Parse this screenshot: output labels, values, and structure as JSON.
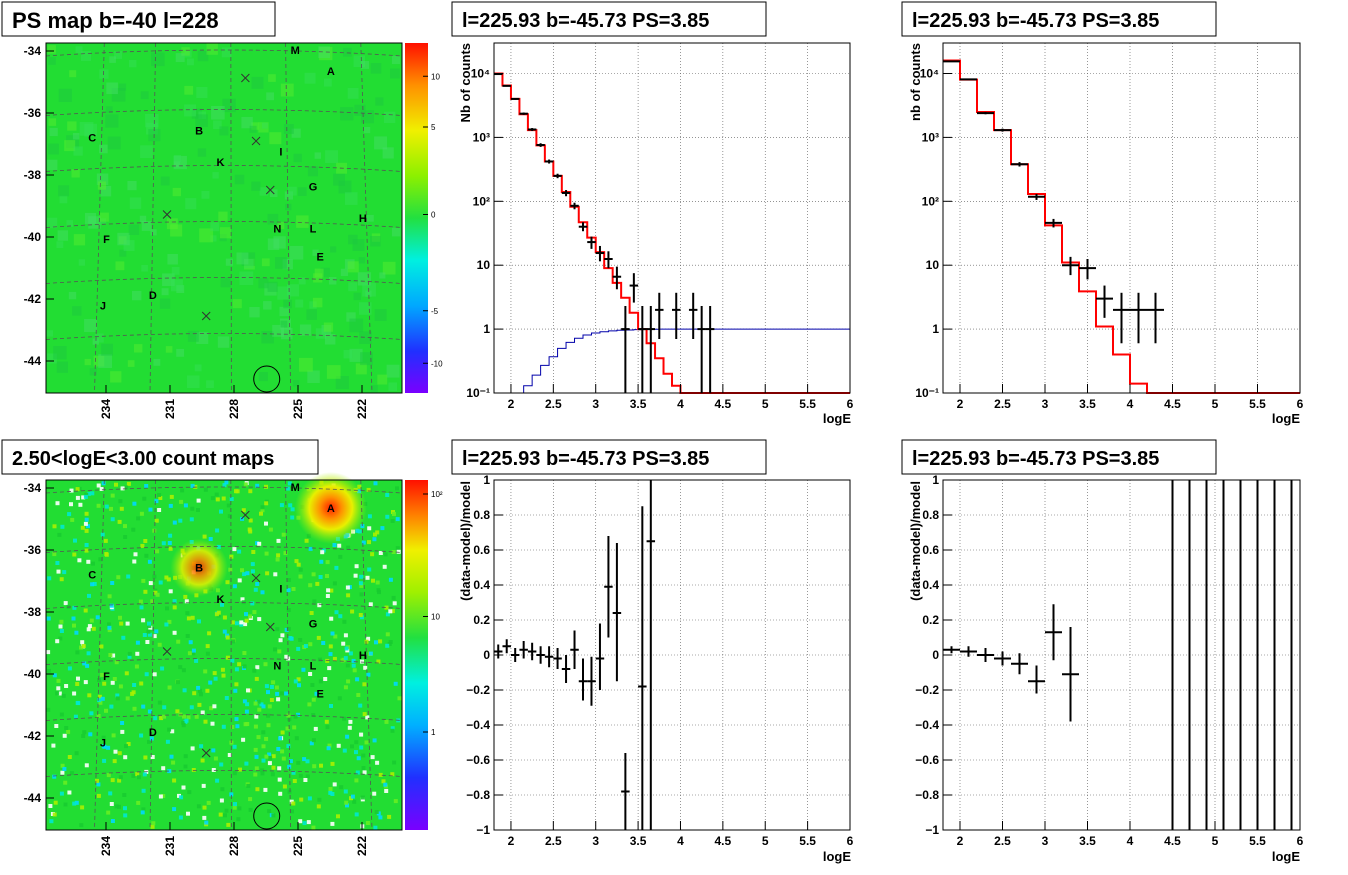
{
  "colors": {
    "data_marker": "#000000",
    "model_line": "#ff0000",
    "ratio_line": "#0000aa",
    "map_background": "#22dd33",
    "grid": "#888888"
  },
  "maps": [
    {
      "id": "ps-map",
      "title": "PS map b=-40 l=228",
      "y_ticks": [
        "-34",
        "-36",
        "-38",
        "-40",
        "-42",
        "-44"
      ],
      "x_ticks": [
        "234",
        "231",
        "228",
        "225",
        "222"
      ],
      "colorbar_labels": [
        "10",
        "5",
        "0",
        "-5",
        "-10"
      ],
      "colorbar_type": "diverging",
      "sources": [
        {
          "label": "A",
          "u": 0.8,
          "v": 0.08
        },
        {
          "label": "M",
          "u": 0.7,
          "v": 0.02
        },
        {
          "label": "B",
          "u": 0.43,
          "v": 0.25
        },
        {
          "label": "C",
          "u": 0.13,
          "v": 0.27
        },
        {
          "label": "I",
          "u": 0.66,
          "v": 0.31
        },
        {
          "label": "K",
          "u": 0.49,
          "v": 0.34
        },
        {
          "label": "G",
          "u": 0.75,
          "v": 0.41
        },
        {
          "label": "H",
          "u": 0.89,
          "v": 0.5
        },
        {
          "label": "N",
          "u": 0.65,
          "v": 0.53
        },
        {
          "label": "L",
          "u": 0.75,
          "v": 0.53
        },
        {
          "label": "F",
          "u": 0.17,
          "v": 0.56
        },
        {
          "label": "E",
          "u": 0.77,
          "v": 0.61
        },
        {
          "label": "D",
          "u": 0.3,
          "v": 0.72
        },
        {
          "label": "J",
          "u": 0.16,
          "v": 0.75
        }
      ],
      "crosses": [
        [
          0.56,
          0.1
        ],
        [
          0.59,
          0.28
        ],
        [
          0.63,
          0.42
        ],
        [
          0.34,
          0.49
        ],
        [
          0.45,
          0.78
        ]
      ],
      "circle": {
        "u": 0.62,
        "v": 0.96
      },
      "blobs": []
    },
    {
      "id": "count-map",
      "title": "2.50<logE<3.00 count maps",
      "y_ticks": [
        "-34",
        "-36",
        "-38",
        "-40",
        "-42",
        "-44"
      ],
      "x_ticks": [
        "234",
        "231",
        "228",
        "225",
        "222"
      ],
      "colorbar_labels": [
        "10²",
        "10",
        "1"
      ],
      "colorbar_type": "log",
      "sources": [
        {
          "label": "A",
          "u": 0.8,
          "v": 0.08
        },
        {
          "label": "M",
          "u": 0.7,
          "v": 0.02
        },
        {
          "label": "B",
          "u": 0.43,
          "v": 0.25
        },
        {
          "label": "C",
          "u": 0.13,
          "v": 0.27
        },
        {
          "label": "I",
          "u": 0.66,
          "v": 0.31
        },
        {
          "label": "K",
          "u": 0.49,
          "v": 0.34
        },
        {
          "label": "G",
          "u": 0.75,
          "v": 0.41
        },
        {
          "label": "H",
          "u": 0.89,
          "v": 0.5
        },
        {
          "label": "N",
          "u": 0.65,
          "v": 0.53
        },
        {
          "label": "L",
          "u": 0.75,
          "v": 0.53
        },
        {
          "label": "F",
          "u": 0.17,
          "v": 0.56
        },
        {
          "label": "E",
          "u": 0.77,
          "v": 0.61
        },
        {
          "label": "D",
          "u": 0.3,
          "v": 0.72
        },
        {
          "label": "J",
          "u": 0.16,
          "v": 0.75
        }
      ],
      "crosses": [
        [
          0.56,
          0.1
        ],
        [
          0.59,
          0.28
        ],
        [
          0.63,
          0.42
        ],
        [
          0.34,
          0.49
        ],
        [
          0.45,
          0.78
        ]
      ],
      "circle": {
        "u": 0.62,
        "v": 0.96
      },
      "blobs": [
        {
          "u": 0.8,
          "v": 0.08,
          "strength": 1.0
        },
        {
          "u": 0.43,
          "v": 0.25,
          "strength": 0.6
        }
      ]
    }
  ],
  "chart_data": [
    {
      "type": "line",
      "id": "spectrum-1",
      "title": "l=225.93 b=-45.73 PS=3.85",
      "xlabel": "logE",
      "ylabel": "Nb of counts",
      "log_y": true,
      "xlim": [
        1.8,
        6.0
      ],
      "ylim": [
        0.1,
        30000
      ],
      "grid": true,
      "x_ticks": [
        2,
        2.5,
        3,
        3.5,
        4,
        4.5,
        5,
        5.5,
        6
      ],
      "x_tick_labels": [
        "2",
        "2.5",
        "3",
        "3.5",
        "4",
        "4.5",
        "5",
        "5.5",
        "6"
      ],
      "y_ticks": [
        0.1,
        1,
        10,
        100,
        1000,
        10000
      ],
      "y_tick_labels": [
        "10⁻¹",
        "1",
        "10",
        "10²",
        "10³",
        "10⁴"
      ],
      "model_edges": [
        1.8,
        1.9,
        2.0,
        2.1,
        2.2,
        2.3,
        2.4,
        2.5,
        2.6,
        2.7,
        2.8,
        2.9,
        3.0,
        3.1,
        3.2,
        3.3,
        3.4,
        3.5,
        3.6,
        3.7,
        3.8,
        3.9,
        4.0,
        4.1,
        6.0
      ],
      "model_values": [
        10000,
        6500,
        4000,
        2300,
        1300,
        750,
        420,
        250,
        140,
        82,
        47,
        27,
        16,
        9,
        5.3,
        3.1,
        1.8,
        1.0,
        0.6,
        0.35,
        0.2,
        0.13,
        0.1,
        0.1
      ],
      "ratio_edges": [
        1.8,
        2.05,
        2.15,
        2.25,
        2.35,
        2.45,
        2.55,
        2.65,
        2.75,
        2.85,
        2.95,
        3.05,
        3.15,
        3.25,
        3.35,
        3.45,
        3.55,
        3.65,
        3.75,
        6.0
      ],
      "ratio_values": [
        0.1,
        0.1,
        0.13,
        0.19,
        0.27,
        0.37,
        0.5,
        0.62,
        0.72,
        0.81,
        0.87,
        0.91,
        0.94,
        0.96,
        0.97,
        0.98,
        0.99,
        0.995,
        1.0
      ],
      "points": [
        {
          "x": 1.85,
          "y": 9800,
          "xerr": 0.05,
          "ylo": 9600,
          "yhi": 10000
        },
        {
          "x": 1.95,
          "y": 6400,
          "xerr": 0.05,
          "ylo": 6250,
          "yhi": 6550
        },
        {
          "x": 2.05,
          "y": 4000,
          "xerr": 0.05,
          "ylo": 3880,
          "yhi": 4120
        },
        {
          "x": 2.15,
          "y": 2350,
          "xerr": 0.05,
          "ylo": 2250,
          "yhi": 2450
        },
        {
          "x": 2.25,
          "y": 1330,
          "xerr": 0.05,
          "ylo": 1260,
          "yhi": 1400
        },
        {
          "x": 2.35,
          "y": 760,
          "xerr": 0.05,
          "ylo": 710,
          "yhi": 810
        },
        {
          "x": 2.45,
          "y": 420,
          "xerr": 0.05,
          "ylo": 390,
          "yhi": 450
        },
        {
          "x": 2.55,
          "y": 250,
          "xerr": 0.05,
          "ylo": 230,
          "yhi": 270
        },
        {
          "x": 2.65,
          "y": 135,
          "xerr": 0.05,
          "ylo": 120,
          "yhi": 150
        },
        {
          "x": 2.75,
          "y": 85,
          "xerr": 0.05,
          "ylo": 75,
          "yhi": 95
        },
        {
          "x": 2.85,
          "y": 40,
          "xerr": 0.05,
          "ylo": 34,
          "yhi": 47
        },
        {
          "x": 2.95,
          "y": 23,
          "xerr": 0.05,
          "ylo": 18,
          "yhi": 28
        },
        {
          "x": 3.05,
          "y": 15.5,
          "xerr": 0.05,
          "ylo": 11.5,
          "yhi": 20
        },
        {
          "x": 3.15,
          "y": 12.5,
          "xerr": 0.05,
          "ylo": 9,
          "yhi": 16.5
        },
        {
          "x": 3.25,
          "y": 6.6,
          "xerr": 0.05,
          "ylo": 4.2,
          "yhi": 9.5
        },
        {
          "x": 3.35,
          "y": 1.0,
          "xerr": 0.05,
          "ylo": 0.1,
          "yhi": 2.3
        },
        {
          "x": 3.45,
          "y": 4.8,
          "xerr": 0.05,
          "ylo": 2.6,
          "yhi": 7.5
        },
        {
          "x": 3.55,
          "y": 1.0,
          "xerr": 0.05,
          "ylo": 0.1,
          "yhi": 2.3
        },
        {
          "x": 3.65,
          "y": 1.0,
          "xerr": 0.05,
          "ylo": 0.1,
          "yhi": 2.3
        },
        {
          "x": 3.75,
          "y": 2.0,
          "xerr": 0.05,
          "ylo": 0.7,
          "yhi": 3.7
        },
        {
          "x": 3.95,
          "y": 2.0,
          "xerr": 0.05,
          "ylo": 0.7,
          "yhi": 3.7
        },
        {
          "x": 4.15,
          "y": 2.0,
          "xerr": 0.05,
          "ylo": 0.7,
          "yhi": 3.7
        },
        {
          "x": 4.25,
          "y": 1.0,
          "xerr": 0.05,
          "ylo": 0.1,
          "yhi": 2.3
        },
        {
          "x": 4.35,
          "y": 1.0,
          "xerr": 0.05,
          "ylo": 0.1,
          "yhi": 2.3
        }
      ]
    },
    {
      "type": "line",
      "id": "spectrum-2",
      "title": "l=225.93 b=-45.73 PS=3.85",
      "xlabel": "logE",
      "ylabel": "nb of counts",
      "log_y": true,
      "xlim": [
        1.8,
        6.0
      ],
      "ylim": [
        0.1,
        30000
      ],
      "grid": true,
      "x_ticks": [
        2,
        2.5,
        3,
        3.5,
        4,
        4.5,
        5,
        5.5,
        6
      ],
      "x_tick_labels": [
        "2",
        "2.5",
        "3",
        "3.5",
        "4",
        "4.5",
        "5",
        "5.5",
        "6"
      ],
      "y_ticks": [
        0.1,
        1,
        10,
        100,
        1000,
        10000
      ],
      "y_tick_labels": [
        "10⁻¹",
        "1",
        "10",
        "10²",
        "10³",
        "10⁴"
      ],
      "model_edges": [
        1.8,
        2.0,
        2.2,
        2.4,
        2.6,
        2.8,
        3.0,
        3.2,
        3.4,
        3.6,
        3.8,
        4.0,
        4.2,
        6.0
      ],
      "model_values": [
        16000,
        8000,
        2500,
        1300,
        380,
        130,
        42,
        11,
        3.9,
        1.1,
        0.4,
        0.14,
        0.1
      ],
      "ratio_edges": [],
      "ratio_values": [],
      "points": [
        {
          "x": 1.9,
          "y": 15500,
          "xerr": 0.1,
          "ylo": 15200,
          "yhi": 15800
        },
        {
          "x": 2.1,
          "y": 8100,
          "xerr": 0.1,
          "ylo": 7900,
          "yhi": 8300
        },
        {
          "x": 2.3,
          "y": 2400,
          "xerr": 0.1,
          "ylo": 2300,
          "yhi": 2500
        },
        {
          "x": 2.5,
          "y": 1300,
          "xerr": 0.1,
          "ylo": 1230,
          "yhi": 1370
        },
        {
          "x": 2.7,
          "y": 380,
          "xerr": 0.1,
          "ylo": 350,
          "yhi": 410
        },
        {
          "x": 2.9,
          "y": 118,
          "xerr": 0.1,
          "ylo": 105,
          "yhi": 130
        },
        {
          "x": 3.1,
          "y": 46,
          "xerr": 0.1,
          "ylo": 39,
          "yhi": 53
        },
        {
          "x": 3.3,
          "y": 10,
          "xerr": 0.1,
          "ylo": 7,
          "yhi": 13.5
        },
        {
          "x": 3.5,
          "y": 9,
          "xerr": 0.1,
          "ylo": 6,
          "yhi": 12.5
        },
        {
          "x": 3.7,
          "y": 3.0,
          "xerr": 0.1,
          "ylo": 1.5,
          "yhi": 4.8
        },
        {
          "x": 3.9,
          "y": 2.0,
          "xerr": 0.1,
          "ylo": 0.6,
          "yhi": 3.7
        },
        {
          "x": 4.1,
          "y": 2.0,
          "xerr": 0.1,
          "ylo": 0.6,
          "yhi": 3.7
        },
        {
          "x": 4.3,
          "y": 2.0,
          "xerr": 0.1,
          "ylo": 0.6,
          "yhi": 3.7
        }
      ]
    },
    {
      "type": "scatter",
      "id": "residual-1",
      "title": "l=225.93 b=-45.73 PS=3.85",
      "xlabel": "logE",
      "ylabel": "(data-model)/model",
      "log_y": false,
      "xlim": [
        1.8,
        6.0
      ],
      "ylim": [
        -1,
        1
      ],
      "grid": true,
      "x_ticks": [
        2,
        2.5,
        3,
        3.5,
        4,
        4.5,
        5,
        5.5,
        6
      ],
      "x_tick_labels": [
        "2",
        "2.5",
        "3",
        "3.5",
        "4",
        "4.5",
        "5",
        "5.5",
        "6"
      ],
      "y_ticks": [
        -1,
        -0.8,
        -0.6,
        -0.4,
        -0.2,
        0,
        0.2,
        0.4,
        0.6,
        0.8,
        1
      ],
      "y_tick_labels": [
        "−1",
        "−0.8",
        "−0.6",
        "−0.4",
        "−0.2",
        "0",
        "0.2",
        "0.4",
        "0.6",
        "0.8",
        "1"
      ],
      "points": [
        {
          "x": 1.85,
          "y": 0.02,
          "xerr": 0.05,
          "ylo": -0.02,
          "yhi": 0.06
        },
        {
          "x": 1.95,
          "y": 0.05,
          "xerr": 0.05,
          "ylo": 0.01,
          "yhi": 0.09
        },
        {
          "x": 2.05,
          "y": 0.0,
          "xerr": 0.05,
          "ylo": -0.04,
          "yhi": 0.04
        },
        {
          "x": 2.15,
          "y": 0.03,
          "xerr": 0.05,
          "ylo": -0.02,
          "yhi": 0.08
        },
        {
          "x": 2.25,
          "y": 0.02,
          "xerr": 0.05,
          "ylo": -0.03,
          "yhi": 0.07
        },
        {
          "x": 2.35,
          "y": 0.0,
          "xerr": 0.05,
          "ylo": -0.05,
          "yhi": 0.05
        },
        {
          "x": 2.45,
          "y": -0.01,
          "xerr": 0.05,
          "ylo": -0.07,
          "yhi": 0.05
        },
        {
          "x": 2.55,
          "y": -0.02,
          "xerr": 0.05,
          "ylo": -0.08,
          "yhi": 0.04
        },
        {
          "x": 2.65,
          "y": -0.08,
          "xerr": 0.05,
          "ylo": -0.16,
          "yhi": 0.0
        },
        {
          "x": 2.75,
          "y": 0.03,
          "xerr": 0.05,
          "ylo": -0.08,
          "yhi": 0.14
        },
        {
          "x": 2.85,
          "y": -0.15,
          "xerr": 0.05,
          "ylo": -0.26,
          "yhi": -0.02
        },
        {
          "x": 2.95,
          "y": -0.15,
          "xerr": 0.05,
          "ylo": -0.29,
          "yhi": -0.01
        },
        {
          "x": 3.05,
          "y": -0.02,
          "xerr": 0.05,
          "ylo": -0.2,
          "yhi": 0.18
        },
        {
          "x": 3.15,
          "y": 0.39,
          "xerr": 0.05,
          "ylo": 0.1,
          "yhi": 0.68
        },
        {
          "x": 3.25,
          "y": 0.24,
          "xerr": 0.05,
          "ylo": -0.15,
          "yhi": 0.64
        },
        {
          "x": 3.35,
          "y": -0.78,
          "xerr": 0.05,
          "ylo": -1.0,
          "yhi": -0.56
        },
        {
          "x": 3.55,
          "y": -0.18,
          "xerr": 0.05,
          "ylo": -1.0,
          "yhi": 0.85
        },
        {
          "x": 3.65,
          "y": 0.65,
          "xerr": 0.05,
          "ylo": -1.0,
          "yhi": 1.0
        }
      ]
    },
    {
      "type": "scatter",
      "id": "residual-2",
      "title": "l=225.93 b=-45.73 PS=3.85",
      "xlabel": "logE",
      "ylabel": "(data-model)/model",
      "log_y": false,
      "xlim": [
        1.8,
        6.0
      ],
      "ylim": [
        -1,
        1
      ],
      "grid": true,
      "x_ticks": [
        2,
        2.5,
        3,
        3.5,
        4,
        4.5,
        5,
        5.5,
        6
      ],
      "x_tick_labels": [
        "2",
        "2.5",
        "3",
        "3.5",
        "4",
        "4.5",
        "5",
        "5.5",
        "6"
      ],
      "y_ticks": [
        -1,
        -0.8,
        -0.6,
        -0.4,
        -0.2,
        0,
        0.2,
        0.4,
        0.6,
        0.8,
        1
      ],
      "y_tick_labels": [
        "−1",
        "−0.8",
        "−0.6",
        "−0.4",
        "−0.2",
        "0",
        "0.2",
        "0.4",
        "0.6",
        "0.8",
        "1"
      ],
      "points": [
        {
          "x": 1.9,
          "y": 0.03,
          "xerr": 0.1,
          "ylo": 0.01,
          "yhi": 0.05
        },
        {
          "x": 2.1,
          "y": 0.02,
          "xerr": 0.1,
          "ylo": -0.01,
          "yhi": 0.05
        },
        {
          "x": 2.3,
          "y": 0.0,
          "xerr": 0.1,
          "ylo": -0.04,
          "yhi": 0.04
        },
        {
          "x": 2.5,
          "y": -0.02,
          "xerr": 0.1,
          "ylo": -0.06,
          "yhi": 0.02
        },
        {
          "x": 2.7,
          "y": -0.05,
          "xerr": 0.1,
          "ylo": -0.11,
          "yhi": 0.01
        },
        {
          "x": 2.9,
          "y": -0.15,
          "xerr": 0.1,
          "ylo": -0.22,
          "yhi": -0.06
        },
        {
          "x": 3.1,
          "y": 0.13,
          "xerr": 0.1,
          "ylo": -0.03,
          "yhi": 0.29
        },
        {
          "x": 3.3,
          "y": -0.11,
          "xerr": 0.1,
          "ylo": -0.38,
          "yhi": 0.16
        },
        {
          "x": 4.5,
          "y": 1.0,
          "xerr": 0.0,
          "ylo": -1.0,
          "yhi": 1.0
        },
        {
          "x": 4.7,
          "y": 1.0,
          "xerr": 0.0,
          "ylo": -1.0,
          "yhi": 1.0
        },
        {
          "x": 4.9,
          "y": 1.0,
          "xerr": 0.0,
          "ylo": -1.0,
          "yhi": 1.0
        },
        {
          "x": 5.1,
          "y": 1.0,
          "xerr": 0.0,
          "ylo": -1.0,
          "yhi": 1.0
        },
        {
          "x": 5.3,
          "y": 1.0,
          "xerr": 0.0,
          "ylo": -1.0,
          "yhi": 1.0
        },
        {
          "x": 5.5,
          "y": 1.0,
          "xerr": 0.0,
          "ylo": -1.0,
          "yhi": 1.0
        },
        {
          "x": 5.7,
          "y": 1.0,
          "xerr": 0.0,
          "ylo": -1.0,
          "yhi": 1.0
        },
        {
          "x": 5.9,
          "y": 1.0,
          "xerr": 0.0,
          "ylo": -1.0,
          "yhi": 1.0
        }
      ]
    }
  ]
}
